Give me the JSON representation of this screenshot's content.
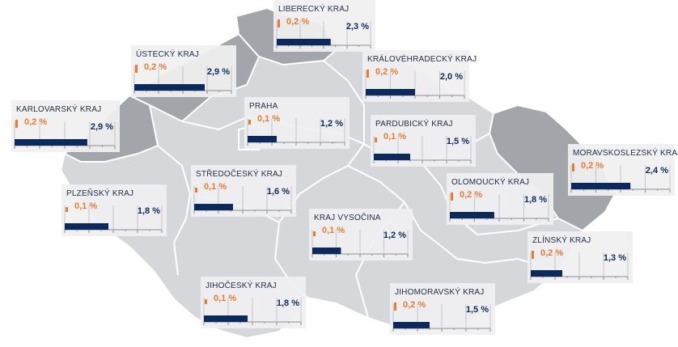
{
  "chart_data": {
    "type": "bar",
    "colors": {
      "orange": "#e87b33",
      "navy": "#0b2a5b",
      "map_light": "#d5d7da",
      "map_dark": "#a2a5aa",
      "border": "#ffffff"
    },
    "regions": [
      {
        "name": "LIBERECKÝ KRAJ",
        "orange_label": "0,2 %",
        "navy_label": "2,3 %",
        "orange_value": 0.2,
        "navy_value": 2.3
      },
      {
        "name": "ÚSTECKÝ KRAJ",
        "orange_label": "0,2 %",
        "navy_label": "2,9 %",
        "orange_value": 0.2,
        "navy_value": 2.9
      },
      {
        "name": "KRÁLOVÉHRADECKÝ KRAJ",
        "orange_label": "0,2 %",
        "navy_label": "2,0 %",
        "orange_value": 0.2,
        "navy_value": 2.0
      },
      {
        "name": "KARLOVARSKÝ KRAJ",
        "orange_label": "0,2 %",
        "navy_label": "2,9 %",
        "orange_value": 0.2,
        "navy_value": 2.9
      },
      {
        "name": "PRAHA",
        "orange_label": "0,1 %",
        "navy_label": "1,2 %",
        "orange_value": 0.1,
        "navy_value": 1.2
      },
      {
        "name": "PARDUBICKÝ KRAJ",
        "orange_label": "0,1 %",
        "navy_label": "1,5 %",
        "orange_value": 0.1,
        "navy_value": 1.5
      },
      {
        "name": "MORAVSKOSLEZSKÝ KRAJ",
        "orange_label": "0,2 %",
        "navy_label": "2,4 %",
        "orange_value": 0.2,
        "navy_value": 2.4
      },
      {
        "name": "STŘEDOČESKÝ KRAJ",
        "orange_label": "0,1 %",
        "navy_label": "1,6 %",
        "orange_value": 0.1,
        "navy_value": 1.6
      },
      {
        "name": "PLZEŇSKÝ KRAJ",
        "orange_label": "0,1 %",
        "navy_label": "1,8 %",
        "orange_value": 0.1,
        "navy_value": 1.8
      },
      {
        "name": "OLOMOUCKÝ KRAJ",
        "orange_label": "0,2 %",
        "navy_label": "1,8 %",
        "orange_value": 0.2,
        "navy_value": 1.8
      },
      {
        "name": "KRAJ VYSOČINA",
        "orange_label": "0,1 %",
        "navy_label": "1,2 %",
        "orange_value": 0.1,
        "navy_value": 1.2
      },
      {
        "name": "ZLÍNSKÝ KRAJ",
        "orange_label": "0,2 %",
        "navy_label": "1,3 %",
        "orange_value": 0.2,
        "navy_value": 1.3
      },
      {
        "name": "JIHOČESKÝ KRAJ",
        "orange_label": "0,1 %",
        "navy_label": "1,8 %",
        "orange_value": 0.1,
        "navy_value": 1.8
      },
      {
        "name": "JIHOMORAVSKÝ KRAJ",
        "orange_label": "0,2 %",
        "navy_label": "1,5 %",
        "orange_value": 0.2,
        "navy_value": 1.5
      }
    ]
  }
}
